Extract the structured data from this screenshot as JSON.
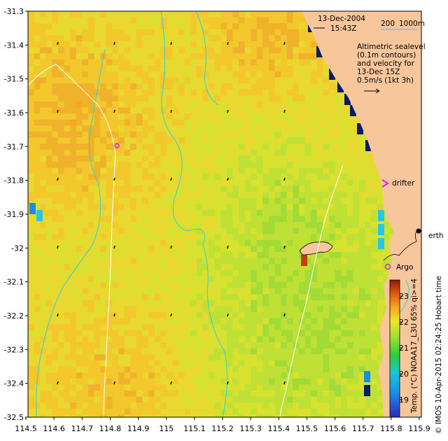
{
  "map": {
    "date": "13-Dec-2004",
    "time": "15:43Z",
    "scale_text": "200",
    "scale_text2": "1000m",
    "legend_lines": [
      "Altimetric sealevel",
      "(0.1m contours)",
      "and velocity for",
      "13-Dec 15Z",
      "0.5m/s (1kt 3h)"
    ],
    "drifter_label": "drifter",
    "argo_label": "Argo",
    "perth_label": "erth",
    "credit": "© IMOS 10-Apr-2015 02:24:25 Hobart time",
    "colorbar_title": "Temp. (°C) NOAA17_L3U 65% qi>=4",
    "colorbar_ticks": [
      "23",
      "22",
      "21",
      "20",
      "19"
    ],
    "x_ticks": [
      "114.5",
      "114.6",
      "114.7",
      "114.8",
      "114.9",
      "115",
      "115.1",
      "115.2",
      "115.3",
      "115.4",
      "115.5",
      "115.6",
      "115.7",
      "115.8",
      "115.9"
    ],
    "y_ticks": [
      "-31.3",
      "-31.4",
      "-31.5",
      "-31.6",
      "-31.7",
      "-31.8",
      "-31.9",
      "-32",
      "-32.1",
      "-32.2",
      "-32.3",
      "-32.4",
      "-32.5"
    ],
    "colors": {
      "land": "#f7c69a",
      "cyan_contour": "#22d6e0",
      "magenta": "#e020e0"
    }
  }
}
